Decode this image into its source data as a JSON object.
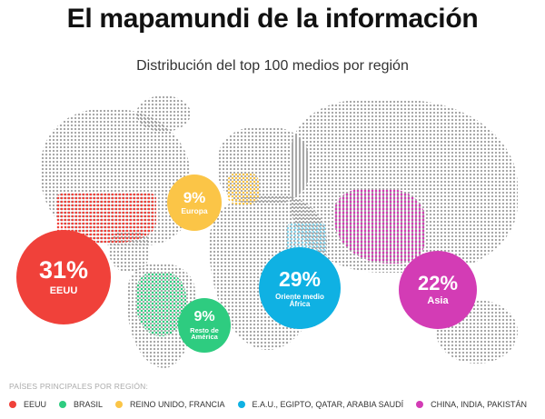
{
  "header": {
    "title": "El mapamundi de la información",
    "subtitle": "Distribución del top 100 medios por región"
  },
  "chart_data": {
    "type": "pie",
    "title": "El mapamundi de la información",
    "subtitle": "Distribución del top 100 medios por región",
    "categories": [
      "EEUU",
      "Europa",
      "Resto de América",
      "Oriente medio África",
      "Asia"
    ],
    "values": [
      31,
      9,
      9,
      29,
      22
    ],
    "labels": [
      "31%",
      "9%",
      "9%",
      "29%",
      "22%"
    ],
    "colors": [
      "#f0413a",
      "#fbc547",
      "#2ecc80",
      "#0fb1e3",
      "#d33cb5"
    ]
  },
  "bubbles": [
    {
      "pct": "31%",
      "l1": "EEUU",
      "l2": ""
    },
    {
      "pct": "9%",
      "l1": "Europa",
      "l2": ""
    },
    {
      "pct": "9%",
      "l1": "Resto de",
      "l2": "América"
    },
    {
      "pct": "29%",
      "l1": "Oriente medio",
      "l2": "África"
    },
    {
      "pct": "22%",
      "l1": "Asia",
      "l2": ""
    }
  ],
  "legend": {
    "title": "PAÍSES PRINCIPALES POR REGIÓN:",
    "items": [
      {
        "label": "EEUU",
        "color": "#f0413a"
      },
      {
        "label": "BRASIL",
        "color": "#2ecc80"
      },
      {
        "label": "REINO UNIDO, FRANCIA",
        "color": "#fbc547"
      },
      {
        "label": "E.A.U., EGIPTO, QATAR, ARABIA SAUDÍ",
        "color": "#0fb1e3"
      },
      {
        "label": "CHINA, INDIA, PAKISTÁN",
        "color": "#d33cb5"
      }
    ]
  }
}
